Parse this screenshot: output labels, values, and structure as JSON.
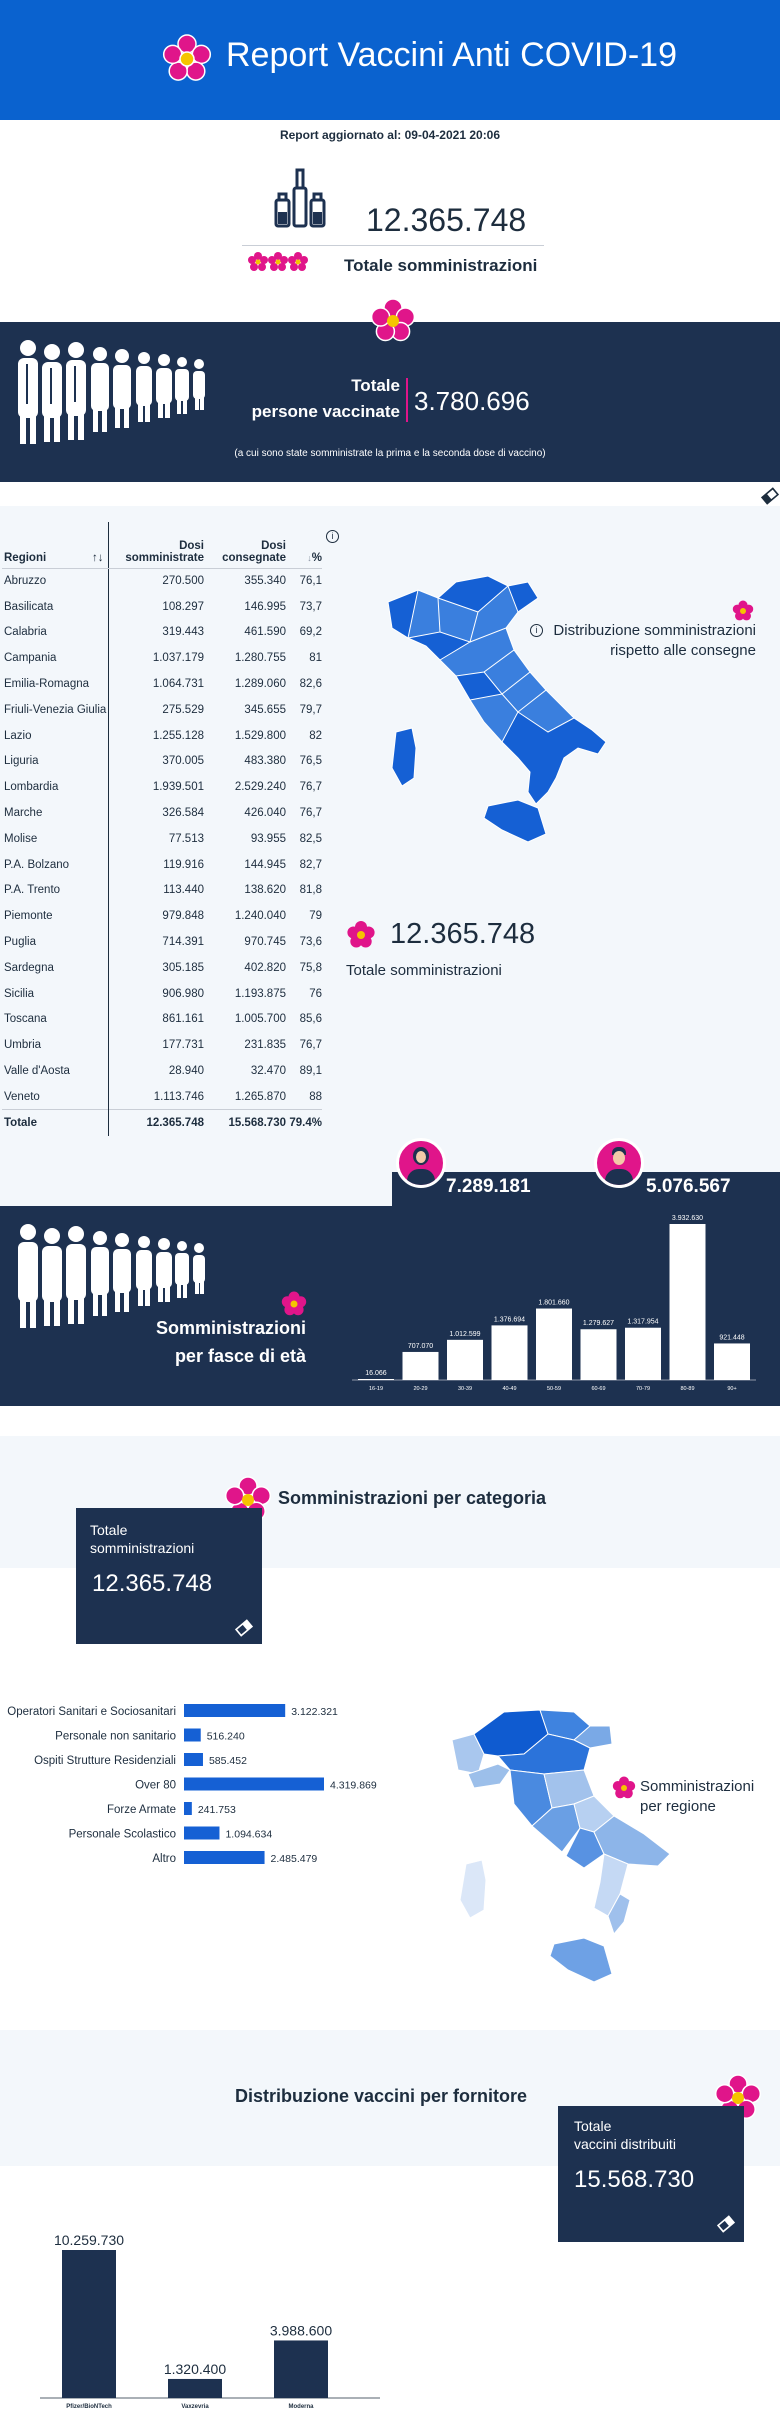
{
  "header": {
    "title": "Report Vaccini Anti COVID-19"
  },
  "updated": "Report aggiornato al: 09-04-2021 20:06",
  "totals": {
    "somministrazioni_value": "12.365.748",
    "somministrazioni_label": "Totale somministrazioni"
  },
  "vaccinated": {
    "label_line1": "Totale",
    "label_line2": "persone vaccinate",
    "value": "3.780.696",
    "note": "(a cui sono state somministrate la prima e la seconda dose di vaccino)"
  },
  "regions_table": {
    "headers": {
      "region": "Regioni",
      "dosi_somm_1": "Dosi",
      "dosi_somm_2": "somministrate",
      "dosi_cons_1": "Dosi",
      "dosi_cons_2": "consegnate",
      "pct": "%"
    },
    "rows": [
      {
        "name": "Abruzzo",
        "somm": "270.500",
        "cons": "355.340",
        "pct": "76,1"
      },
      {
        "name": "Basilicata",
        "somm": "108.297",
        "cons": "146.995",
        "pct": "73,7"
      },
      {
        "name": "Calabria",
        "somm": "319.443",
        "cons": "461.590",
        "pct": "69,2"
      },
      {
        "name": "Campania",
        "somm": "1.037.179",
        "cons": "1.280.755",
        "pct": "81"
      },
      {
        "name": "Emilia-Romagna",
        "somm": "1.064.731",
        "cons": "1.289.060",
        "pct": "82,6"
      },
      {
        "name": "Friuli-Venezia Giulia",
        "somm": "275.529",
        "cons": "345.655",
        "pct": "79,7"
      },
      {
        "name": "Lazio",
        "somm": "1.255.128",
        "cons": "1.529.800",
        "pct": "82"
      },
      {
        "name": "Liguria",
        "somm": "370.005",
        "cons": "483.380",
        "pct": "76,5"
      },
      {
        "name": "Lombardia",
        "somm": "1.939.501",
        "cons": "2.529.240",
        "pct": "76,7"
      },
      {
        "name": "Marche",
        "somm": "326.584",
        "cons": "426.040",
        "pct": "76,7"
      },
      {
        "name": "Molise",
        "somm": "77.513",
        "cons": "93.955",
        "pct": "82,5"
      },
      {
        "name": "P.A. Bolzano",
        "somm": "119.916",
        "cons": "144.945",
        "pct": "82,7"
      },
      {
        "name": "P.A. Trento",
        "somm": "113.440",
        "cons": "138.620",
        "pct": "81,8"
      },
      {
        "name": "Piemonte",
        "somm": "979.848",
        "cons": "1.240.040",
        "pct": "79"
      },
      {
        "name": "Puglia",
        "somm": "714.391",
        "cons": "970.745",
        "pct": "73,6"
      },
      {
        "name": "Sardegna",
        "somm": "305.185",
        "cons": "402.820",
        "pct": "75,8"
      },
      {
        "name": "Sicilia",
        "somm": "906.980",
        "cons": "1.193.875",
        "pct": "76"
      },
      {
        "name": "Toscana",
        "somm": "861.161",
        "cons": "1.005.700",
        "pct": "85,6"
      },
      {
        "name": "Umbria",
        "somm": "177.731",
        "cons": "231.835",
        "pct": "76,7"
      },
      {
        "name": "Valle d'Aosta",
        "somm": "28.940",
        "cons": "32.470",
        "pct": "89,1"
      },
      {
        "name": "Veneto",
        "somm": "1.113.746",
        "cons": "1.265.870",
        "pct": "88"
      }
    ],
    "total": {
      "name": "Totale",
      "somm": "12.365.748",
      "cons": "15.568.730",
      "pct": "79.4%"
    }
  },
  "map1": {
    "title_line1": "Distribuzione somministrazioni",
    "title_line2": "rispetto alle consegne",
    "total_value": "12.365.748",
    "total_label": "Totale somministrazioni"
  },
  "gender": {
    "female": "7.289.181",
    "male": "5.076.567"
  },
  "fasce": {
    "title_line1": "Somministrazioni",
    "title_line2": "per fasce di età"
  },
  "categoria": {
    "title": "Somministrazioni per categoria",
    "box_label_line1": "Totale",
    "box_label_line2": "somministrazioni",
    "box_value": "12.365.748"
  },
  "map2": {
    "title_line1": "Somministrazioni",
    "title_line2": "per regione"
  },
  "fornitore": {
    "title": "Distribuzione vaccini per fornitore",
    "box_label_line1": "Totale",
    "box_label_line2": "vaccini distribuiti",
    "box_value": "15.568.730"
  },
  "colors": {
    "brand_blue": "#0a62cf",
    "navy": "#1d3150",
    "accent_pink": "#e0158a",
    "bar_blue": "#1560d4"
  },
  "chart_data": [
    {
      "type": "bar",
      "categories": [
        "16-19",
        "20-29",
        "30-39",
        "40-49",
        "50-59",
        "60-69",
        "70-79",
        "80-89",
        "90+"
      ],
      "values": [
        16066,
        707070,
        1012599,
        1376694,
        1801660,
        1279627,
        1317954,
        3932630,
        921448
      ],
      "value_labels": [
        "16.066",
        "707.070",
        "1.012.599",
        "1.376.694",
        "1.801.660",
        "1.279.627",
        "1.317.954",
        "3.932.630",
        "921.448"
      ],
      "ylim": [
        0,
        3932630
      ]
    },
    {
      "type": "bar",
      "orientation": "horizontal",
      "categories": [
        "Operatori Sanitari e Sociosanitari",
        "Personale non sanitario",
        "Ospiti Strutture Residenziali",
        "Over 80",
        "Forze Armate",
        "Personale Scolastico",
        "Altro"
      ],
      "values": [
        3122321,
        516240,
        585452,
        4319869,
        241753,
        1094634,
        2485479
      ],
      "value_labels": [
        "3.122.321",
        "516.240",
        "585.452",
        "4.319.869",
        "241.753",
        "1.094.634",
        "2.485.479"
      ],
      "xlim": [
        0,
        4319869
      ]
    },
    {
      "type": "bar",
      "categories": [
        "Pfizer/BioNTech",
        "Vaxzevria",
        "Moderna"
      ],
      "values": [
        10259730,
        1320400,
        3988600
      ],
      "value_labels": [
        "10.259.730",
        "1.320.400",
        "3.988.600"
      ],
      "ylim": [
        0,
        10259730
      ]
    }
  ]
}
